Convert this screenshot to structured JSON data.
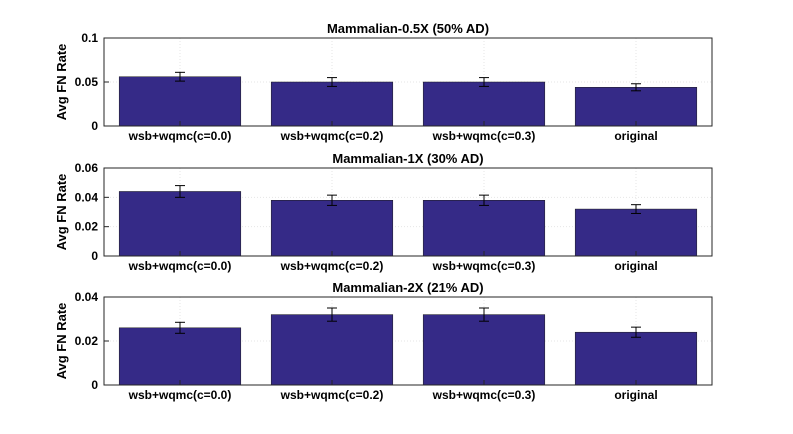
{
  "chart_data": [
    {
      "type": "bar",
      "title": "Mammalian-0.5X (50% AD)",
      "ylabel": "Avg FN Rate",
      "xlabel": "",
      "categories": [
        "wsb+wqmc(c=0.0)",
        "wsb+wqmc(c=0.2)",
        "wsb+wqmc(c=0.3)",
        "original"
      ],
      "values": [
        0.056,
        0.05,
        0.05,
        0.044
      ],
      "errors": [
        0.005,
        0.005,
        0.005,
        0.004
      ],
      "ylim": [
        0,
        0.1
      ],
      "yticks": [
        0,
        0.05,
        0.1
      ],
      "ytick_labels": [
        "0",
        "0.05",
        "0.1"
      ],
      "grid": true,
      "bar_color": "#352A87"
    },
    {
      "type": "bar",
      "title": "Mammalian-1X (30% AD)",
      "ylabel": "Avg FN Rate",
      "xlabel": "",
      "categories": [
        "wsb+wqmc(c=0.0)",
        "wsb+wqmc(c=0.2)",
        "wsb+wqmc(c=0.3)",
        "original"
      ],
      "values": [
        0.044,
        0.038,
        0.038,
        0.032
      ],
      "errors": [
        0.004,
        0.0035,
        0.0035,
        0.003
      ],
      "ylim": [
        0,
        0.06
      ],
      "yticks": [
        0,
        0.02,
        0.04,
        0.06
      ],
      "ytick_labels": [
        "0",
        "0.02",
        "0.04",
        "0.06"
      ],
      "grid": true,
      "bar_color": "#352A87"
    },
    {
      "type": "bar",
      "title": "Mammalian-2X (21% AD)",
      "ylabel": "Avg FN Rate",
      "xlabel": "",
      "categories": [
        "wsb+wqmc(c=0.0)",
        "wsb+wqmc(c=0.2)",
        "wsb+wqmc(c=0.3)",
        "original"
      ],
      "values": [
        0.026,
        0.032,
        0.032,
        0.024
      ],
      "errors": [
        0.0025,
        0.003,
        0.003,
        0.0023
      ],
      "ylim": [
        0,
        0.04
      ],
      "yticks": [
        0,
        0.02,
        0.04
      ],
      "ytick_labels": [
        "0",
        "0.02",
        "0.04"
      ],
      "grid": true,
      "bar_color": "#352A87"
    }
  ]
}
